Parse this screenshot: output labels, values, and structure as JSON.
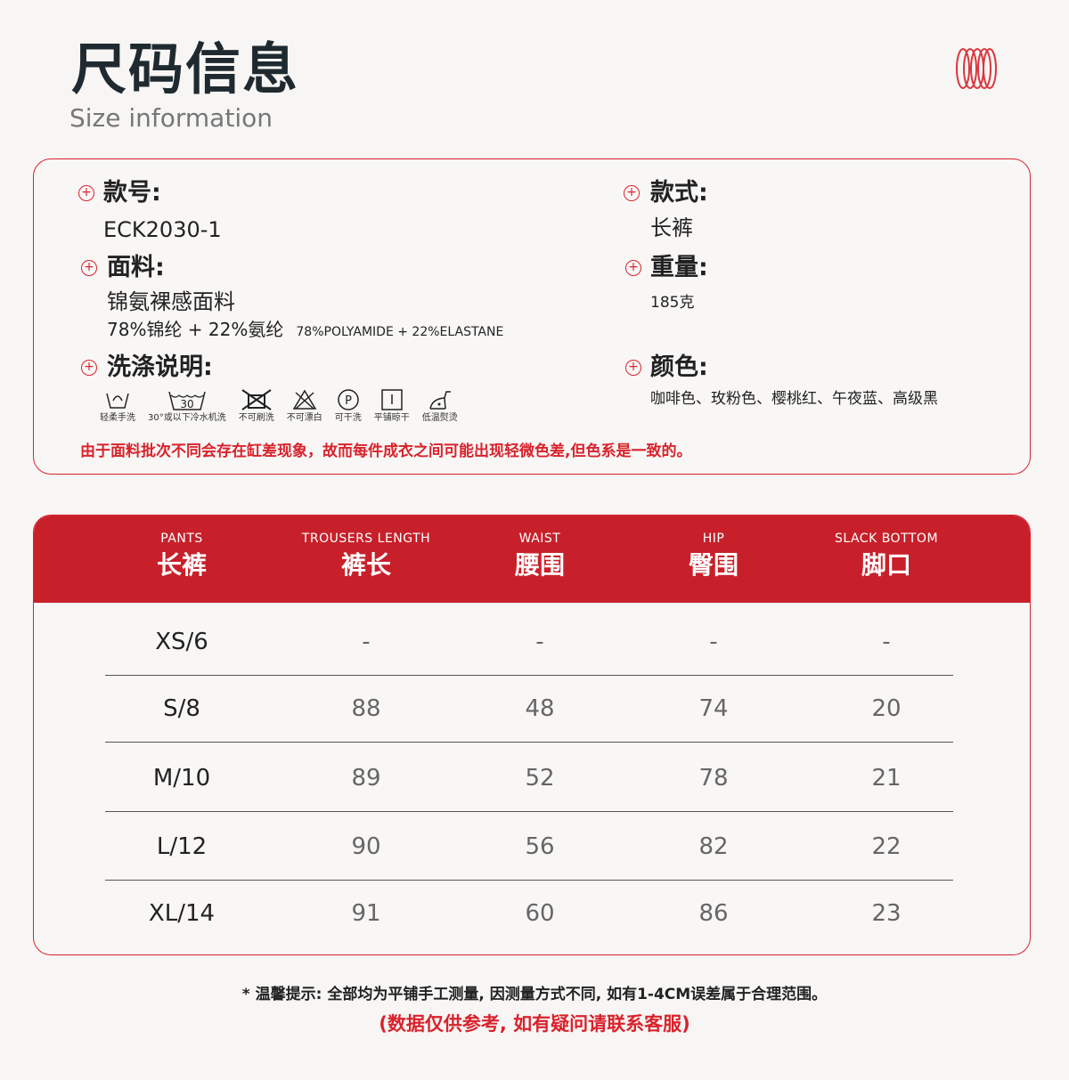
{
  "header": {
    "title": "尺码信息",
    "subtitle": "Size information"
  },
  "info": {
    "style_no_label": "款号:",
    "style_no": "ECK2030-1",
    "fabric_label": "面料:",
    "fabric": "锦氨裸感面料",
    "fabric_cn": "78%锦纶 + 22%氨纶",
    "fabric_en": "78%POLYAMIDE + 22%ELASTANE",
    "care_label": "洗涤说明:",
    "care_items": [
      {
        "icon": "hand-wash-icon",
        "label": "轻柔手洗"
      },
      {
        "icon": "wash-30-icon",
        "label": "30°或以下冷水机洗",
        "temp": "30"
      },
      {
        "icon": "no-brush-icon",
        "label": "不可刷洗"
      },
      {
        "icon": "no-bleach-icon",
        "label": "不可漂白"
      },
      {
        "icon": "dry-clean-icon",
        "label": "可干洗",
        "letter": "P"
      },
      {
        "icon": "flat-dry-icon",
        "label": "平铺晾干"
      },
      {
        "icon": "low-iron-icon",
        "label": "低温熨烫"
      }
    ],
    "type_label": "款式:",
    "type": "长裤",
    "weight_label": "重量:",
    "weight": "185克",
    "color_label": "颜色:",
    "colors": "咖啡色、玫粉色、樱桃红、午夜蓝、高级黑",
    "warning": "由于面料批次不同会存在缸差现象，故而每件成衣之间可能出现轻微色差,但色系是一致的。"
  },
  "table": {
    "columns": [
      {
        "en": "PANTS",
        "zh": "长裤"
      },
      {
        "en": "TROUSERS LENGTH",
        "zh": "裤长"
      },
      {
        "en": "WAIST",
        "zh": "腰围"
      },
      {
        "en": "HIP",
        "zh": "臀围"
      },
      {
        "en": "SLACK BOTTOM",
        "zh": "脚口"
      }
    ],
    "rows": [
      [
        "XS/6",
        "-",
        "-",
        "-",
        "-"
      ],
      [
        "S/8",
        "88",
        "48",
        "74",
        "20"
      ],
      [
        "M/10",
        "89",
        "52",
        "78",
        "21"
      ],
      [
        "L/12",
        "90",
        "56",
        "82",
        "22"
      ],
      [
        "XL/14",
        "91",
        "60",
        "86",
        "23"
      ]
    ]
  },
  "footer": {
    "tip": "* 温馨提示: 全部均为平铺手工测量, 因测量方式不同, 如有1-4CM误差属于合理范围。",
    "reference": "(数据仅供参考, 如有疑问请联系客服)"
  },
  "colors": {
    "accent": "#c8202a",
    "background": "#f7f6f4"
  }
}
